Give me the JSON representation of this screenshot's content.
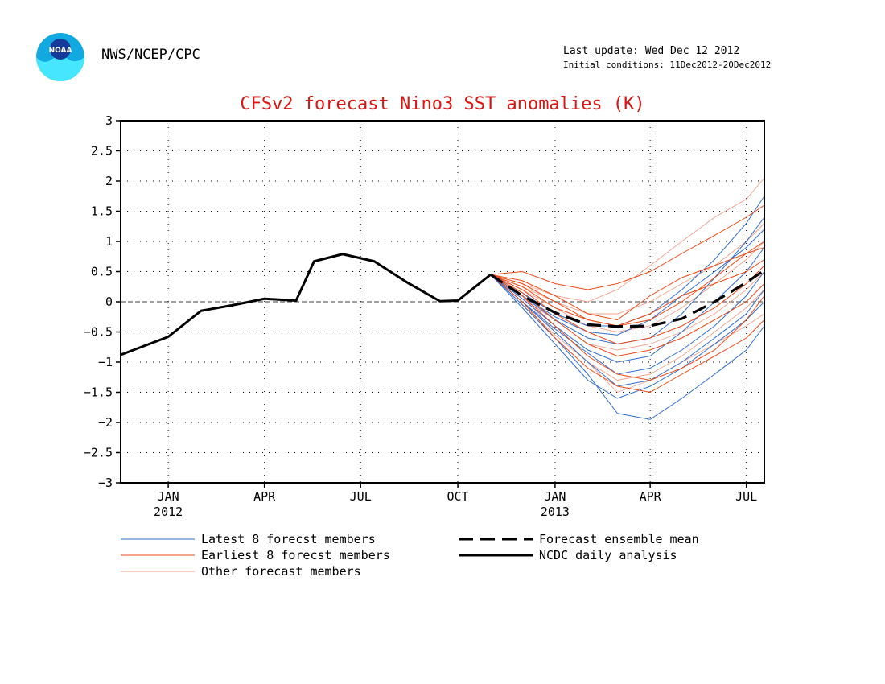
{
  "header": {
    "agency": "NWS/NCEP/CPC",
    "last_update": "Last update: Wed Dec 12 2012",
    "initial_conditions": "Initial conditions: 11Dec2012-20Dec2012",
    "logo_text": "NOAA"
  },
  "colors": {
    "title": "#e0120f",
    "latest": "#2f6fd0",
    "earliest": "#ee4a16",
    "other": "#f2a08a",
    "observed": "#000000"
  },
  "chart_data": {
    "type": "line",
    "title": "CFSv2 forecast Nino3 SST anomalies (K)",
    "xlabel": "",
    "ylabel": "",
    "ylim": [
      -3,
      3
    ],
    "y_ticks": [
      3,
      2.5,
      2,
      1.5,
      1,
      0.5,
      0,
      -0.5,
      -1,
      -1.5,
      -2,
      -2.5,
      -3
    ],
    "y_tick_labels": [
      "3",
      "2.5",
      "2",
      "1.5",
      "1",
      "0.5",
      "0",
      "−0.5",
      "−1",
      "−1.5",
      "−2",
      "−2.5",
      "−3"
    ],
    "x_range": [
      "2011-12-01",
      "2013-08-01"
    ],
    "x_ticks": [
      {
        "date": "2012-01-15",
        "label": "JAN",
        "year": "2012"
      },
      {
        "date": "2012-04-15",
        "label": "APR",
        "year": ""
      },
      {
        "date": "2012-07-15",
        "label": "JUL",
        "year": ""
      },
      {
        "date": "2012-10-15",
        "label": "OCT",
        "year": ""
      },
      {
        "date": "2013-01-15",
        "label": "JAN",
        "year": "2013"
      },
      {
        "date": "2013-04-15",
        "label": "APR",
        "year": ""
      },
      {
        "date": "2013-07-15",
        "label": "JUL",
        "year": ""
      }
    ],
    "grid": true,
    "zero_line": true,
    "legend": [
      {
        "label": "Latest 8 forecst members",
        "style": "thin",
        "color": "#2f6fd0"
      },
      {
        "label": "Earliest 8 forecst members",
        "style": "thin",
        "color": "#ee4a16"
      },
      {
        "label": "Other forecast members",
        "style": "thin",
        "color": "#f2a08a"
      },
      {
        "label": "Forecast ensemble mean",
        "style": "dashed",
        "color": "#000000"
      },
      {
        "label": "NCDC daily analysis",
        "style": "thick",
        "color": "#000000"
      }
    ],
    "legend_placement": "bottom",
    "observed": {
      "name": "NCDC daily analysis",
      "x": [
        "2011-12-01",
        "2012-01-15",
        "2012-02-15",
        "2012-03-15",
        "2012-04-15",
        "2012-05-15",
        "2012-06-01",
        "2012-06-28",
        "2012-07-28",
        "2012-08-28",
        "2012-09-28",
        "2012-10-15",
        "2012-11-15"
      ],
      "values": [
        -0.88,
        -0.58,
        -0.15,
        -0.06,
        0.05,
        0.02,
        0.67,
        0.79,
        0.67,
        0.32,
        0.01,
        0.02,
        0.45
      ]
    },
    "ensemble_mean": {
      "name": "Forecast ensemble mean",
      "x": [
        "2012-11-15",
        "2012-12-15",
        "2013-01-15",
        "2013-02-15",
        "2013-03-15",
        "2013-04-15",
        "2013-05-15",
        "2013-06-15",
        "2013-07-15",
        "2013-08-01"
      ],
      "values": [
        0.45,
        0.1,
        -0.18,
        -0.38,
        -0.41,
        -0.4,
        -0.28,
        0.0,
        0.32,
        0.52
      ]
    },
    "members": {
      "x": [
        "2012-11-15",
        "2012-12-15",
        "2013-01-15",
        "2013-02-15",
        "2013-03-15",
        "2013-04-15",
        "2013-05-15",
        "2013-06-15",
        "2013-07-15",
        "2013-08-01"
      ],
      "latest": [
        [
          0.45,
          -0.05,
          -0.6,
          -1.2,
          -1.85,
          -1.95,
          -1.6,
          -1.2,
          -0.8,
          -0.4
        ],
        [
          0.45,
          0.0,
          -0.5,
          -1.0,
          -1.4,
          -1.3,
          -1.0,
          -0.6,
          -0.2,
          0.2
        ],
        [
          0.45,
          0.05,
          -0.4,
          -0.8,
          -1.0,
          -0.9,
          -0.5,
          0.0,
          0.5,
          0.9
        ],
        [
          0.45,
          0.1,
          -0.3,
          -0.6,
          -0.7,
          -0.6,
          -0.2,
          0.4,
          1.0,
          1.4
        ],
        [
          0.45,
          0.15,
          -0.2,
          -0.4,
          -0.4,
          -0.2,
          0.2,
          0.7,
          1.3,
          1.75
        ],
        [
          0.45,
          -0.1,
          -0.7,
          -1.3,
          -1.6,
          -1.4,
          -1.1,
          -0.7,
          -0.3,
          0.0
        ],
        [
          0.45,
          0.0,
          -0.45,
          -0.85,
          -1.2,
          -1.1,
          -0.8,
          -0.4,
          0.1,
          0.5
        ],
        [
          0.45,
          0.1,
          -0.25,
          -0.5,
          -0.55,
          -0.3,
          0.1,
          0.5,
          0.9,
          1.2
        ]
      ],
      "earliest": [
        [
          0.45,
          0.5,
          0.3,
          0.2,
          0.3,
          0.5,
          0.8,
          1.1,
          1.4,
          1.6
        ],
        [
          0.45,
          0.3,
          0.0,
          -0.3,
          -0.4,
          -0.3,
          0.0,
          0.4,
          0.8,
          1.0
        ],
        [
          0.45,
          0.2,
          -0.2,
          -0.5,
          -0.7,
          -0.6,
          -0.4,
          -0.1,
          0.3,
          0.6
        ],
        [
          0.45,
          0.1,
          -0.4,
          -0.9,
          -1.2,
          -1.3,
          -1.1,
          -0.8,
          -0.3,
          0.1
        ],
        [
          0.45,
          0.35,
          0.1,
          -0.2,
          -0.3,
          0.1,
          0.4,
          0.6,
          0.8,
          0.9
        ],
        [
          0.45,
          0.0,
          -0.6,
          -1.1,
          -1.4,
          -1.5,
          -1.2,
          -0.9,
          -0.6,
          -0.3
        ],
        [
          0.45,
          0.25,
          -0.1,
          -0.3,
          -0.4,
          -0.2,
          0.1,
          0.3,
          0.5,
          0.7
        ],
        [
          0.45,
          0.15,
          -0.3,
          -0.7,
          -0.9,
          -0.8,
          -0.6,
          -0.3,
          0.0,
          0.3
        ]
      ],
      "other": [
        [
          0.45,
          0.3,
          0.1,
          0.0,
          0.2,
          0.6,
          1.0,
          1.4,
          1.7,
          2.05
        ],
        [
          0.45,
          0.2,
          -0.1,
          -0.4,
          -0.5,
          -0.4,
          -0.1,
          0.3,
          0.7,
          1.0
        ],
        [
          0.45,
          0.1,
          -0.5,
          -1.0,
          -1.3,
          -1.2,
          -0.9,
          -0.5,
          -0.1,
          0.2
        ],
        [
          0.45,
          0.25,
          0.0,
          -0.2,
          -0.2,
          0.0,
          0.3,
          0.6,
          1.0,
          1.3
        ],
        [
          0.45,
          0.05,
          -0.3,
          -0.7,
          -0.8,
          -0.7,
          -0.5,
          -0.2,
          0.2,
          0.5
        ],
        [
          0.45,
          -0.05,
          -0.55,
          -1.0,
          -1.5,
          -1.3,
          -1.0,
          -0.7,
          -0.4,
          -0.2
        ]
      ]
    }
  }
}
